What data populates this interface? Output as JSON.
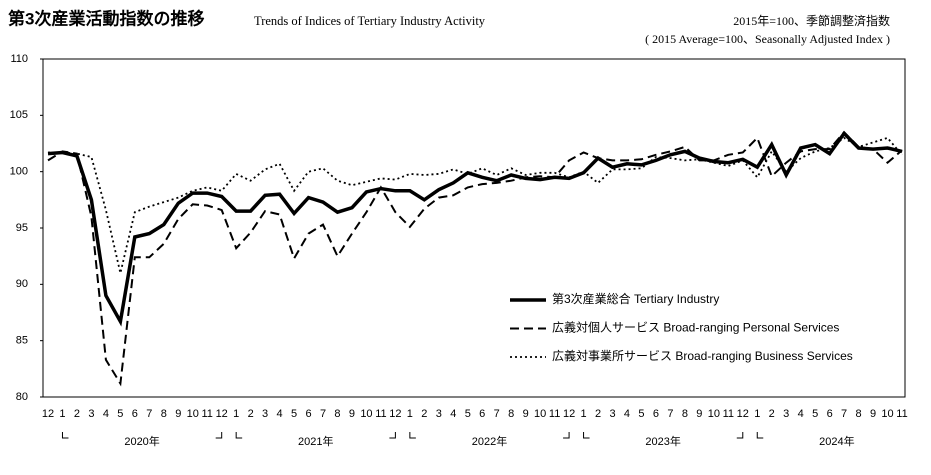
{
  "chart_data": {
    "type": "line",
    "title": "第3次産業活動指数の推移",
    "subtitle": "Trends of Indices of Tertiary Industry Activity",
    "note_line1": "2015年=100、季節調整済指数",
    "note_line2": "( 2015 Average=100、Seasonally Adjusted Index )",
    "categories": [
      "12",
      "1",
      "2",
      "3",
      "4",
      "5",
      "6",
      "7",
      "8",
      "9",
      "10",
      "11",
      "12",
      "1",
      "2",
      "3",
      "4",
      "5",
      "6",
      "7",
      "8",
      "9",
      "10",
      "11",
      "12",
      "1",
      "2",
      "3",
      "4",
      "5",
      "6",
      "7",
      "8",
      "9",
      "10",
      "11",
      "12",
      "1",
      "2",
      "3",
      "4",
      "5",
      "6",
      "7",
      "8",
      "9",
      "10",
      "11",
      "12",
      "1",
      "2",
      "3",
      "4",
      "5",
      "6",
      "7",
      "8",
      "9",
      "10",
      "11"
    ],
    "year_labels": [
      "2020年",
      "2021年",
      "2022年",
      "2023年",
      "2024年"
    ],
    "ylim": [
      80,
      110
    ],
    "yticks": [
      80,
      85,
      90,
      95,
      100,
      105,
      110
    ],
    "grid": false,
    "legend": "lower-right",
    "series": [
      {
        "name": "第3次産業総合 Tertiary Industry",
        "color": "#000000",
        "style": "solid",
        "values": [
          101.6,
          101.7,
          101.4,
          97.5,
          89.0,
          86.7,
          94.2,
          94.5,
          95.3,
          97.2,
          98.1,
          98.1,
          97.8,
          96.5,
          96.5,
          97.9,
          98.0,
          96.3,
          97.7,
          97.3,
          96.4,
          96.8,
          98.2,
          98.5,
          98.3,
          98.3,
          97.5,
          98.4,
          99.0,
          99.9,
          99.5,
          99.2,
          99.7,
          99.4,
          99.3,
          99.5,
          99.4,
          99.9,
          101.2,
          100.4,
          100.7,
          100.6,
          101.0,
          101.5,
          101.8,
          101.2,
          100.9,
          100.8,
          101.1,
          100.4,
          102.4,
          99.7,
          102.1,
          102.4,
          101.6,
          103.4,
          102.1,
          102.0,
          102.1,
          101.8
        ]
      },
      {
        "name": "広義対個人サービス Broad-ranging Personal Services",
        "color": "#000000",
        "style": "dashed",
        "values": [
          101.0,
          101.8,
          101.6,
          96.0,
          83.3,
          81.2,
          92.4,
          92.4,
          93.6,
          95.8,
          97.1,
          97.0,
          96.6,
          93.2,
          94.6,
          96.5,
          96.2,
          92.3,
          94.5,
          95.3,
          92.5,
          94.5,
          96.4,
          98.6,
          96.4,
          95.1,
          96.7,
          97.7,
          97.9,
          98.6,
          98.9,
          99.0,
          99.2,
          99.5,
          99.6,
          99.5,
          101.0,
          101.7,
          101.2,
          101.0,
          101.0,
          101.1,
          101.5,
          101.8,
          102.2,
          101.0,
          101.0,
          101.5,
          101.7,
          103.0,
          99.6,
          100.8,
          101.8,
          102.0,
          102.0,
          103.5,
          102.2,
          102.0,
          100.8,
          101.9
        ]
      },
      {
        "name": "広義対事業所サービス Broad-ranging Business Services",
        "color": "#000000",
        "style": "dotted",
        "values": [
          101.7,
          101.7,
          101.6,
          101.3,
          96.6,
          91.0,
          96.4,
          96.9,
          97.3,
          97.7,
          98.3,
          98.6,
          98.3,
          99.8,
          99.2,
          100.2,
          100.7,
          98.3,
          100.0,
          100.3,
          99.2,
          98.8,
          99.1,
          99.4,
          99.3,
          99.8,
          99.7,
          99.8,
          100.2,
          99.8,
          100.3,
          99.7,
          100.3,
          99.7,
          99.9,
          99.9,
          99.5,
          100.0,
          99.0,
          100.2,
          100.2,
          100.3,
          101.3,
          101.2,
          101.0,
          101.1,
          100.8,
          100.5,
          101.0,
          99.5,
          101.8,
          100.0,
          101.2,
          101.8,
          102.1,
          103.0,
          102.2,
          102.6,
          103.0,
          101.5
        ]
      }
    ]
  }
}
